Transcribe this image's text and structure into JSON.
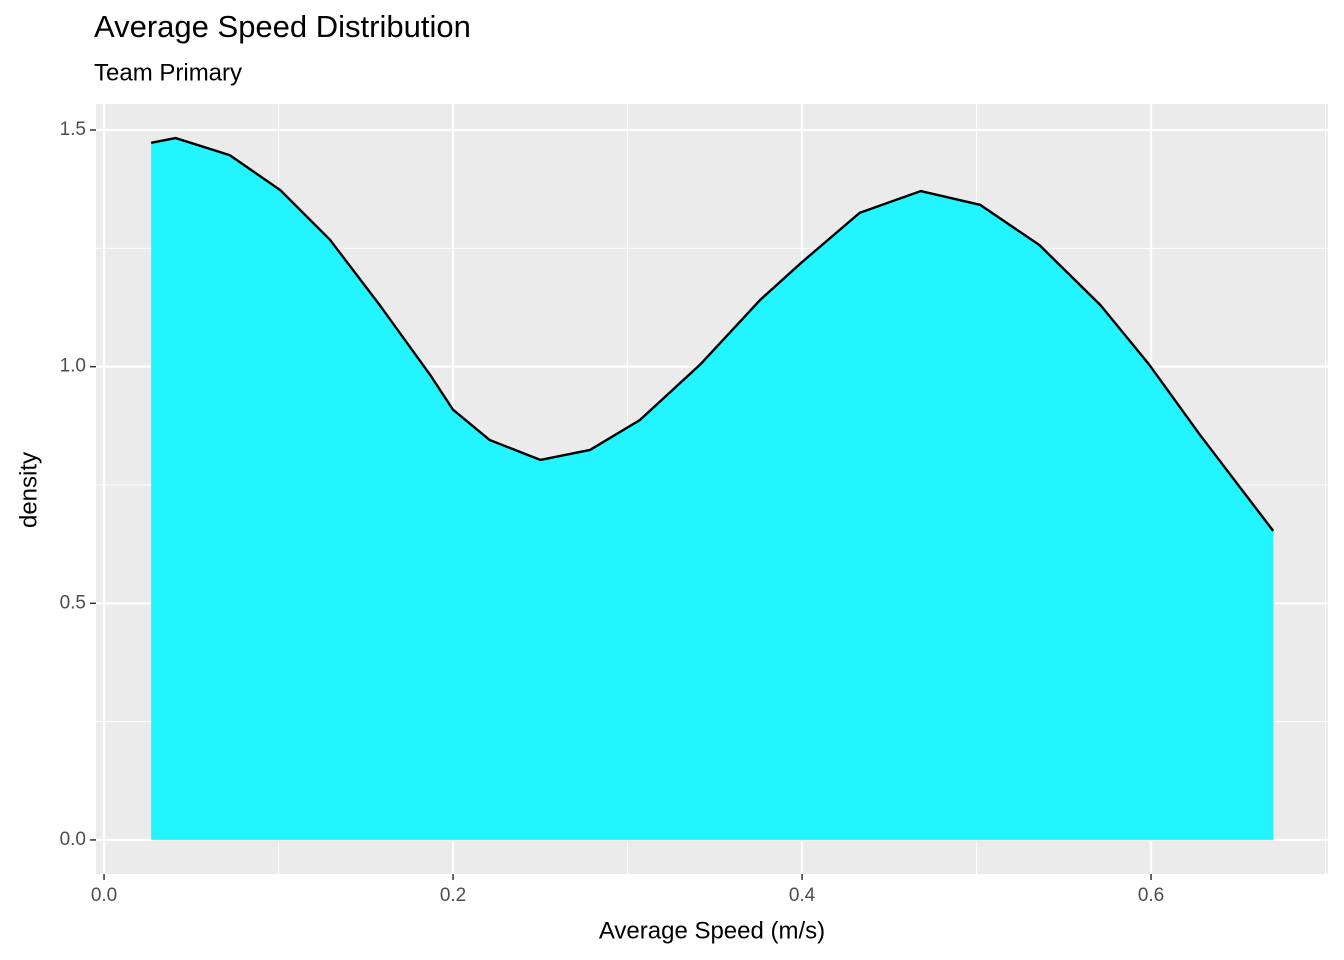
{
  "chart_data": {
    "type": "density",
    "title": "Average Speed Distribution",
    "subtitle": "Team Primary",
    "x_label": "Average Speed (m/s)",
    "y_label": "density",
    "x": [
      0.027,
      0.041,
      0.072,
      0.101,
      0.1295,
      0.158,
      0.187,
      0.2,
      0.221,
      0.25,
      0.2785,
      0.307,
      0.3415,
      0.376,
      0.4,
      0.433,
      0.468,
      0.502,
      0.536,
      0.571,
      0.599,
      0.628,
      0.67
    ],
    "values": [
      1.473,
      1.483,
      1.447,
      1.373,
      1.268,
      1.13,
      0.982,
      0.909,
      0.845,
      0.803,
      0.824,
      0.887,
      1.004,
      1.141,
      1.221,
      1.325,
      1.371,
      1.342,
      1.257,
      1.13,
      1.004,
      0.856,
      0.653
    ],
    "color": "#22f5ff",
    "line_color": "#000000",
    "xlim": [
      -0.0046,
      0.7014
    ],
    "ylim": [
      -0.072,
      1.555
    ],
    "xticks": [
      {
        "value": 0,
        "label": "0.0"
      },
      {
        "value": 0.2,
        "label": "0.2"
      },
      {
        "value": 0.4,
        "label": "0.4"
      },
      {
        "value": 0.6,
        "label": "0.6"
      }
    ],
    "yticks": [
      {
        "value": 0,
        "label": "0.0"
      },
      {
        "value": 0.5,
        "label": "0.5"
      },
      {
        "value": 1.0,
        "label": "1.0"
      },
      {
        "value": 1.5,
        "label": "1.5"
      }
    ],
    "x_minor_ticks": [
      0.1,
      0.3,
      0.5,
      0.7
    ],
    "y_minor_ticks": [
      0.25,
      0.75,
      1.25
    ],
    "grid": true
  }
}
